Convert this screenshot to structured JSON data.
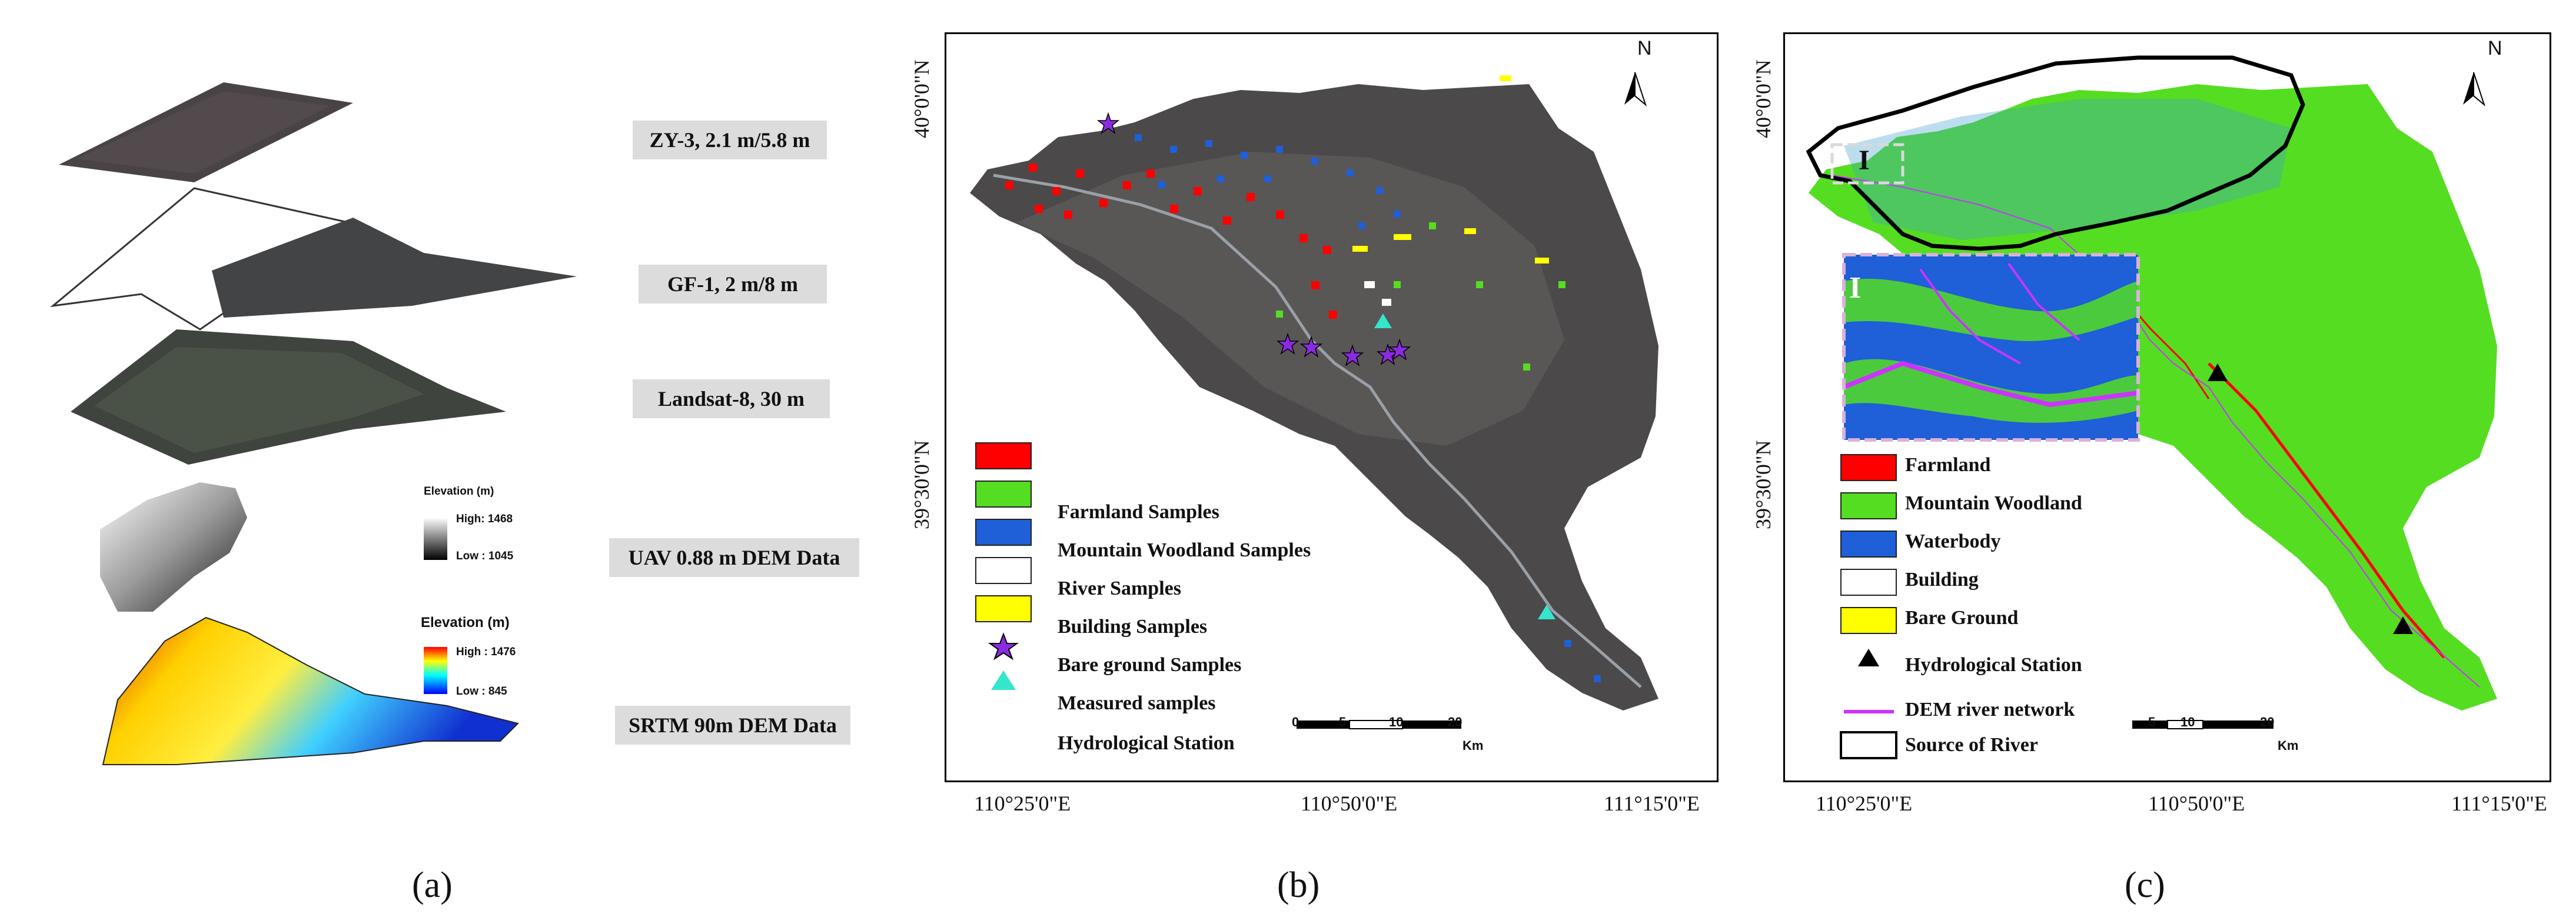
{
  "panel_a": {
    "labels": [
      "ZY-3, 2.1 m/5.8 m",
      "GF-1, 2 m/8 m",
      "Landsat-8, 30 m",
      "UAV 0.88 m DEM Data",
      "SRTM 90m DEM Data"
    ],
    "uav_legend": {
      "title": "Elevation (m)",
      "high": "High: 1468",
      "low": "Low : 1045"
    },
    "srtm_legend": {
      "title": "Elevation (m)",
      "high": "High : 1476",
      "low": "Low : 845"
    },
    "caption": "(a)"
  },
  "panel_b": {
    "lat_top": "40°0'0\"N",
    "lat_mid": "39°30'0\"N",
    "lon_left": "110°25'0\"E",
    "lon_mid": "110°50'0\"E",
    "lon_right": "111°15'0\"E",
    "north": "N",
    "legend": [
      "Farmland Samples",
      "Mountain Woodland Samples",
      "River Samples",
      "Building Samples",
      "Bare ground Samples",
      "Measured samples",
      "Hydrological Station"
    ],
    "scale": {
      "ticks": [
        "0",
        "5",
        "10",
        "20"
      ],
      "unit": "Km"
    },
    "caption": "(b)"
  },
  "panel_c": {
    "lat_top": "40°0'0\"N",
    "lat_mid": "39°30'0\"N",
    "lon_left": "110°25'0\"E",
    "lon_mid": "110°50'0\"E",
    "lon_right": "111°15'0\"E",
    "north": "N",
    "inset_label": "I",
    "legend": [
      "Farmland",
      "Mountain Woodland",
      "Waterbody",
      "Building",
      "Bare Ground",
      "Hydrological Station",
      "DEM river network",
      "Source of River"
    ],
    "scale": {
      "ticks": [
        "5",
        "10",
        "20"
      ],
      "unit": "Km"
    },
    "caption": "(c)"
  },
  "colors": {
    "farmland": "#ff0000",
    "woodland": "#55dd22",
    "water": "#1f5fd8",
    "building": "#ffffff",
    "bare": "#ffff00",
    "measured": "#8a2be2",
    "hydro_b": "#33e6cc",
    "dem_river": "#cc33ff"
  }
}
